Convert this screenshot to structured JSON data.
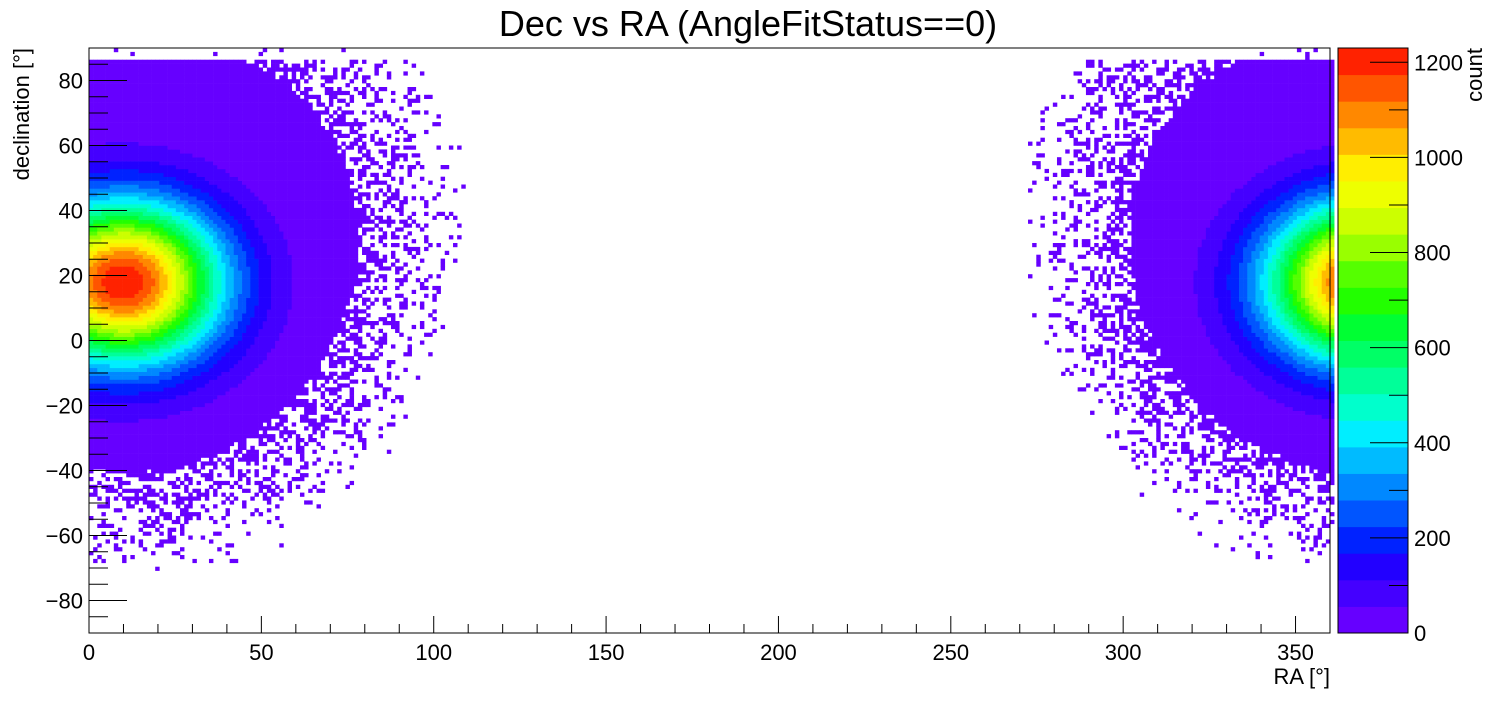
{
  "chart_data": {
    "type": "heatmap",
    "title": "Dec vs RA (AngleFitStatus==0)",
    "xlabel": "RA [°]",
    "ylabel": "declination [°]",
    "zlabel": "count",
    "xlim": [
      0,
      360
    ],
    "ylim": [
      -90,
      90
    ],
    "zlim": [
      0,
      1230
    ],
    "x_ticks": [
      {
        "value": 0,
        "label": "0"
      },
      {
        "value": 50,
        "label": "50"
      },
      {
        "value": 100,
        "label": "100"
      },
      {
        "value": 150,
        "label": "150"
      },
      {
        "value": 200,
        "label": "200"
      },
      {
        "value": 250,
        "label": "250"
      },
      {
        "value": 300,
        "label": "300"
      },
      {
        "value": 350,
        "label": "350"
      }
    ],
    "y_ticks": [
      {
        "value": -80,
        "label": "−80"
      },
      {
        "value": -60,
        "label": "−60"
      },
      {
        "value": -40,
        "label": "−40"
      },
      {
        "value": -20,
        "label": "−20"
      },
      {
        "value": 0,
        "label": "0"
      },
      {
        "value": 20,
        "label": "20"
      },
      {
        "value": 40,
        "label": "40"
      },
      {
        "value": 60,
        "label": "60"
      },
      {
        "value": 80,
        "label": "80"
      }
    ],
    "z_ticks": [
      {
        "value": 0,
        "label": "0"
      },
      {
        "value": 200,
        "label": "200"
      },
      {
        "value": 400,
        "label": "400"
      },
      {
        "value": 600,
        "label": "600"
      },
      {
        "value": 800,
        "label": "800"
      },
      {
        "value": 1000,
        "label": "1000"
      },
      {
        "value": 1200,
        "label": "1200"
      }
    ],
    "palette": [
      "#6600ff",
      "#4400ff",
      "#2200ff",
      "#0022ff",
      "#0055ff",
      "#0088ff",
      "#00bbff",
      "#00eeff",
      "#00ffcc",
      "#00ff99",
      "#00ff66",
      "#00ff33",
      "#22ff00",
      "#55ff00",
      "#99ff00",
      "#ccff00",
      "#eeff00",
      "#ffee00",
      "#ffbb00",
      "#ff8800",
      "#ff5500",
      "#ff2200"
    ],
    "grid": false,
    "legend": "colorbar-right",
    "peak": {
      "ra": 10,
      "dec": 18,
      "count": 1230
    }
  }
}
